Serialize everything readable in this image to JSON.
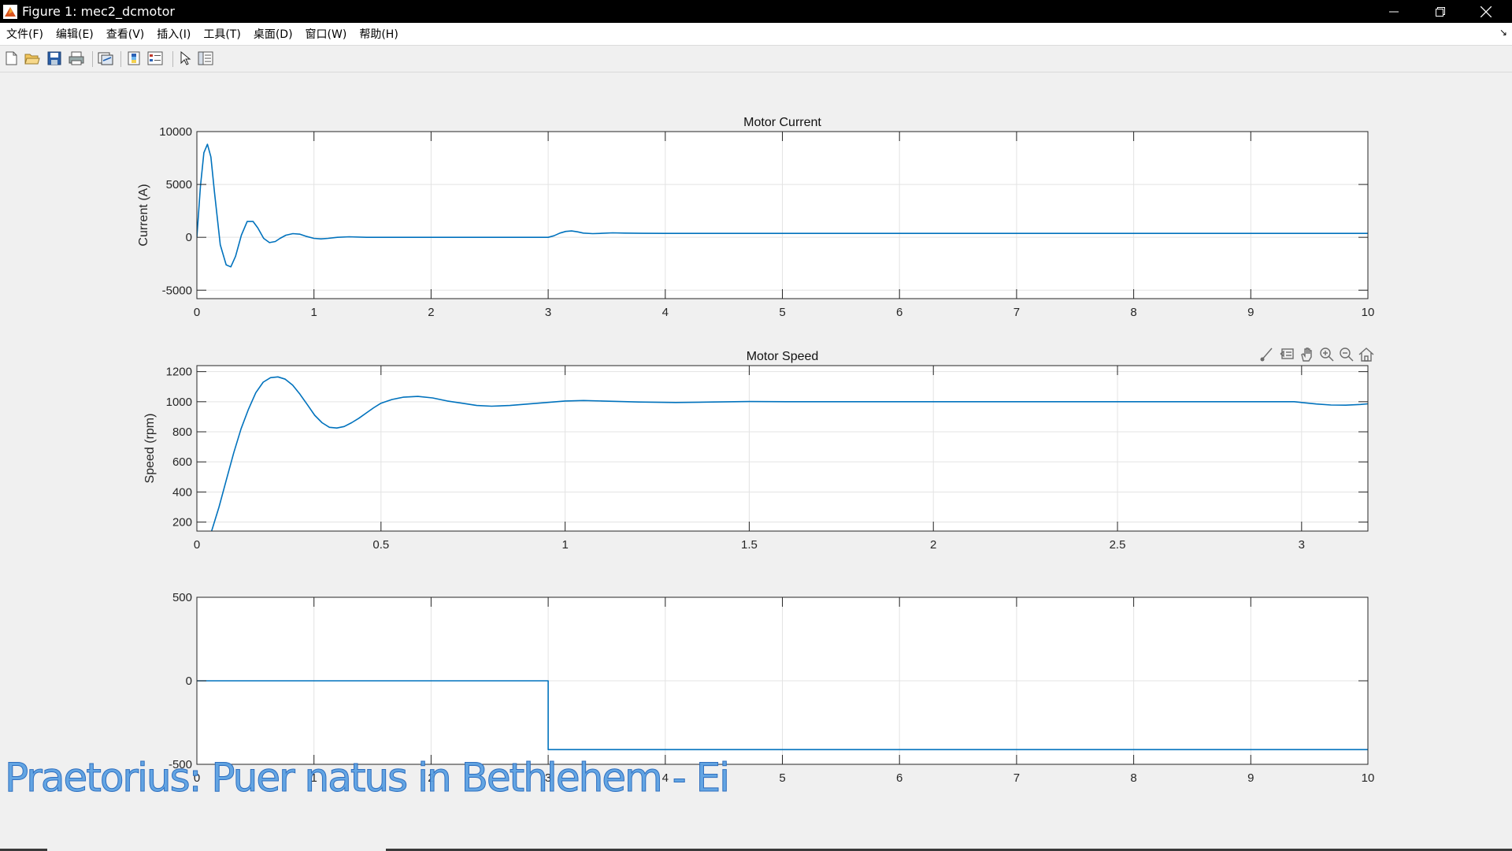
{
  "window": {
    "title": "Figure 1: mec2_dcmotor",
    "controls": {
      "minimize": "minimize-icon",
      "restore": "restore-icon",
      "close": "close-icon"
    }
  },
  "menu": {
    "items": [
      "文件(F)",
      "编辑(E)",
      "查看(V)",
      "插入(I)",
      "工具(T)",
      "桌面(D)",
      "窗口(W)",
      "帮助(H)"
    ]
  },
  "toolbar": {
    "buttons": [
      "new-figure-icon",
      "open-file-icon",
      "save-icon",
      "print-icon",
      "link-plot-icon",
      "insert-colorbar-icon",
      "insert-legend-icon",
      "edit-plot-icon",
      "property-inspector-icon"
    ]
  },
  "axes_toolbar": {
    "buttons": [
      "brush-icon",
      "data-tips-icon",
      "pan-icon",
      "zoom-in-icon",
      "zoom-out-icon",
      "restore-view-icon"
    ]
  },
  "colors": {
    "line": "#0072bd",
    "grid": "#e3e3e3",
    "axis": "#262626",
    "background": "#f0f0f0"
  },
  "watermark": "Praetorius: Puer natus in Bethlehem - Ei",
  "chart_data": [
    {
      "type": "line",
      "title": "Motor Current",
      "xlabel": "",
      "ylabel": "Current (A)",
      "xlim": [
        0,
        10
      ],
      "ylim": [
        -5800,
        10000
      ],
      "xticks": [
        0,
        1,
        2,
        3,
        4,
        5,
        6,
        7,
        8,
        9,
        10
      ],
      "yticks": [
        -5000,
        0,
        5000,
        10000
      ],
      "grid": true,
      "x": [
        0,
        0.03,
        0.06,
        0.09,
        0.12,
        0.15,
        0.2,
        0.25,
        0.29,
        0.33,
        0.38,
        0.43,
        0.48,
        0.52,
        0.57,
        0.62,
        0.67,
        0.71,
        0.76,
        0.82,
        0.88,
        0.93,
        1.0,
        1.06,
        1.12,
        1.2,
        1.3,
        1.45,
        1.6,
        1.8,
        2.0,
        2.5,
        3.0,
        3.05,
        3.1,
        3.15,
        3.2,
        3.25,
        3.3,
        3.38,
        3.46,
        3.55,
        3.65,
        3.8,
        4.0,
        5,
        6,
        7,
        8,
        9,
        10
      ],
      "y": [
        0,
        4800,
        8000,
        8800,
        7600,
        4300,
        -700,
        -2600,
        -2800,
        -1800,
        200,
        1500,
        1500,
        900,
        -100,
        -500,
        -400,
        -100,
        200,
        350,
        300,
        100,
        -100,
        -150,
        -100,
        0,
        50,
        0,
        0,
        0,
        0,
        0,
        0,
        150,
        400,
        560,
        600,
        520,
        400,
        350,
        380,
        420,
        400,
        380,
        370,
        370,
        370,
        370,
        370,
        370,
        370
      ]
    },
    {
      "type": "line",
      "title": "Motor Speed",
      "xlabel": "",
      "ylabel": "Speed (rpm)",
      "xlim": [
        0,
        3.18
      ],
      "ylim": [
        140,
        1240
      ],
      "xticks": [
        0,
        0.5,
        1,
        1.5,
        2,
        2.5,
        3
      ],
      "yticks": [
        200,
        400,
        600,
        800,
        1000,
        1200
      ],
      "grid": true,
      "x": [
        0.04,
        0.06,
        0.08,
        0.1,
        0.12,
        0.14,
        0.16,
        0.18,
        0.2,
        0.22,
        0.24,
        0.26,
        0.28,
        0.3,
        0.32,
        0.34,
        0.36,
        0.38,
        0.4,
        0.42,
        0.44,
        0.46,
        0.48,
        0.5,
        0.53,
        0.56,
        0.6,
        0.64,
        0.68,
        0.72,
        0.76,
        0.8,
        0.85,
        0.9,
        0.95,
        1.0,
        1.05,
        1.1,
        1.2,
        1.3,
        1.4,
        1.5,
        1.6,
        1.8,
        2.0,
        2.4,
        2.8,
        2.98,
        3.0,
        3.04,
        3.08,
        3.12,
        3.16,
        3.18
      ],
      "y": [
        140,
        300,
        480,
        660,
        820,
        950,
        1060,
        1130,
        1160,
        1165,
        1150,
        1110,
        1050,
        980,
        910,
        860,
        830,
        825,
        835,
        860,
        890,
        925,
        960,
        990,
        1015,
        1030,
        1035,
        1025,
        1005,
        990,
        975,
        970,
        975,
        985,
        995,
        1005,
        1008,
        1005,
        998,
        995,
        998,
        1001,
        1000,
        1000,
        1000,
        1000,
        1000,
        1000,
        995,
        985,
        978,
        977,
        982,
        986
      ]
    },
    {
      "type": "line",
      "title": "",
      "xlabel": "",
      "ylabel": "",
      "xlim": [
        0,
        10
      ],
      "ylim": [
        -500,
        500
      ],
      "xticks": [
        0,
        1,
        2,
        3,
        4,
        5,
        6,
        7,
        8,
        9,
        10
      ],
      "yticks": [
        -500,
        0,
        500
      ],
      "grid": true,
      "x": [
        0,
        3.0,
        3.0,
        10
      ],
      "y": [
        0,
        0,
        -412,
        -412
      ]
    }
  ]
}
